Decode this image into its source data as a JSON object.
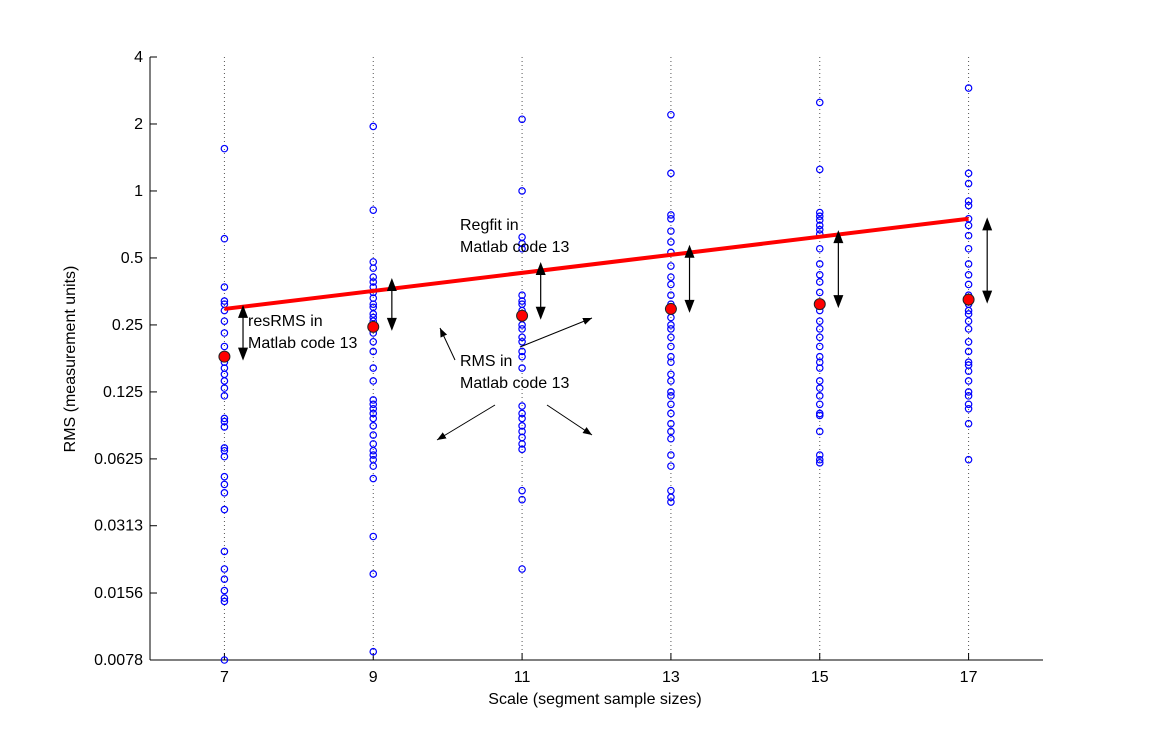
{
  "chart_data": {
    "type": "scatter",
    "xlabel": "Scale (segment sample sizes)",
    "ylabel": "RMS (measurement units)",
    "y_scale": "log2",
    "xlim": [
      6,
      18
    ],
    "ylim": [
      0.0078,
      4
    ],
    "x_ticks": [
      7,
      9,
      11,
      13,
      15,
      17
    ],
    "y_ticks": [
      0.0078,
      0.0156,
      0.0313,
      0.0625,
      0.125,
      0.25,
      0.5,
      1,
      2,
      4
    ],
    "y_tick_labels": [
      "0.0078",
      "0.0156",
      "0.0313",
      "0.0625",
      "0.125",
      "0.25",
      "0.5",
      "1",
      "2",
      "4"
    ],
    "grid": "vertical dotted at data scales",
    "series": [
      {
        "kind": "segment-rms-points",
        "color": "#0000ff",
        "points": [
          {
            "x": 7,
            "values": [
              1.55,
              0.61,
              0.37,
              0.32,
              0.31,
              0.29,
              0.26,
              0.23,
              0.2,
              0.18,
              0.17,
              0.16,
              0.15,
              0.14,
              0.13,
              0.12,
              0.095,
              0.092,
              0.087,
              0.07,
              0.068,
              0.064,
              0.052,
              0.048,
              0.044,
              0.037,
              0.024,
              0.02,
              0.018,
              0.016,
              0.0148,
              0.0143,
              0.0078
            ]
          },
          {
            "x": 9,
            "values": [
              1.95,
              0.82,
              0.48,
              0.45,
              0.41,
              0.39,
              0.37,
              0.35,
              0.33,
              0.31,
              0.3,
              0.28,
              0.27,
              0.26,
              0.25,
              0.24,
              0.23,
              0.21,
              0.19,
              0.16,
              0.14,
              0.115,
              0.11,
              0.105,
              0.1,
              0.095,
              0.088,
              0.08,
              0.073,
              0.068,
              0.065,
              0.062,
              0.058,
              0.051,
              0.028,
              0.019,
              0.0085
            ]
          },
          {
            "x": 11,
            "values": [
              2.1,
              1.0,
              0.62,
              0.58,
              0.55,
              0.34,
              0.32,
              0.31,
              0.29,
              0.28,
              0.25,
              0.24,
              0.22,
              0.21,
              0.19,
              0.18,
              0.16,
              0.108,
              0.1,
              0.095,
              0.088,
              0.083,
              0.078,
              0.073,
              0.069,
              0.045,
              0.041,
              0.02
            ]
          },
          {
            "x": 13,
            "values": [
              2.2,
              1.2,
              0.78,
              0.75,
              0.66,
              0.59,
              0.53,
              0.46,
              0.41,
              0.38,
              0.34,
              0.31,
              0.27,
              0.25,
              0.24,
              0.22,
              0.2,
              0.18,
              0.17,
              0.15,
              0.14,
              0.125,
              0.12,
              0.11,
              0.1,
              0.09,
              0.083,
              0.077,
              0.065,
              0.058,
              0.045,
              0.042,
              0.04
            ]
          },
          {
            "x": 15,
            "values": [
              2.5,
              1.25,
              0.8,
              0.77,
              0.74,
              0.7,
              0.67,
              0.64,
              0.55,
              0.47,
              0.42,
              0.39,
              0.35,
              0.31,
              0.29,
              0.26,
              0.24,
              0.22,
              0.2,
              0.18,
              0.17,
              0.16,
              0.14,
              0.13,
              0.12,
              0.11,
              0.1,
              0.098,
              0.083,
              0.065,
              0.062,
              0.06
            ]
          },
          {
            "x": 17,
            "values": [
              2.9,
              1.2,
              1.08,
              0.9,
              0.86,
              0.75,
              0.7,
              0.63,
              0.55,
              0.47,
              0.42,
              0.38,
              0.34,
              0.31,
              0.29,
              0.28,
              0.26,
              0.24,
              0.21,
              0.19,
              0.17,
              0.165,
              0.155,
              0.14,
              0.125,
              0.12,
              0.11,
              0.105,
              0.09,
              0.062
            ]
          }
        ]
      },
      {
        "kind": "mean-rms",
        "color": "#ff0000",
        "x": [
          7,
          9,
          11,
          13,
          15,
          17
        ],
        "y": [
          0.18,
          0.245,
          0.275,
          0.295,
          0.31,
          0.325
        ]
      },
      {
        "kind": "regression-fit",
        "color": "#ff0000",
        "x": [
          7,
          17
        ],
        "y": [
          0.295,
          0.75
        ]
      }
    ],
    "residual_arrows": [
      {
        "x": 7.25,
        "y_from": 0.295,
        "y_to": 0.18
      },
      {
        "x": 9.25,
        "y_from": 0.39,
        "y_to": 0.245
      },
      {
        "x": 11.25,
        "y_from": 0.46,
        "y_to": 0.275
      },
      {
        "x": 13.25,
        "y_from": 0.55,
        "y_to": 0.295
      },
      {
        "x": 15.25,
        "y_from": 0.64,
        "y_to": 0.31
      },
      {
        "x": 17.25,
        "y_from": 0.73,
        "y_to": 0.325
      }
    ],
    "annotations": [
      {
        "id": "regfit",
        "lines": [
          "Regfit in",
          "Matlab code 13"
        ]
      },
      {
        "id": "resrms",
        "lines": [
          "resRMS in",
          "Matlab code 13"
        ]
      },
      {
        "id": "rms",
        "lines": [
          "RMS in",
          "Matlab code 13"
        ]
      }
    ]
  }
}
